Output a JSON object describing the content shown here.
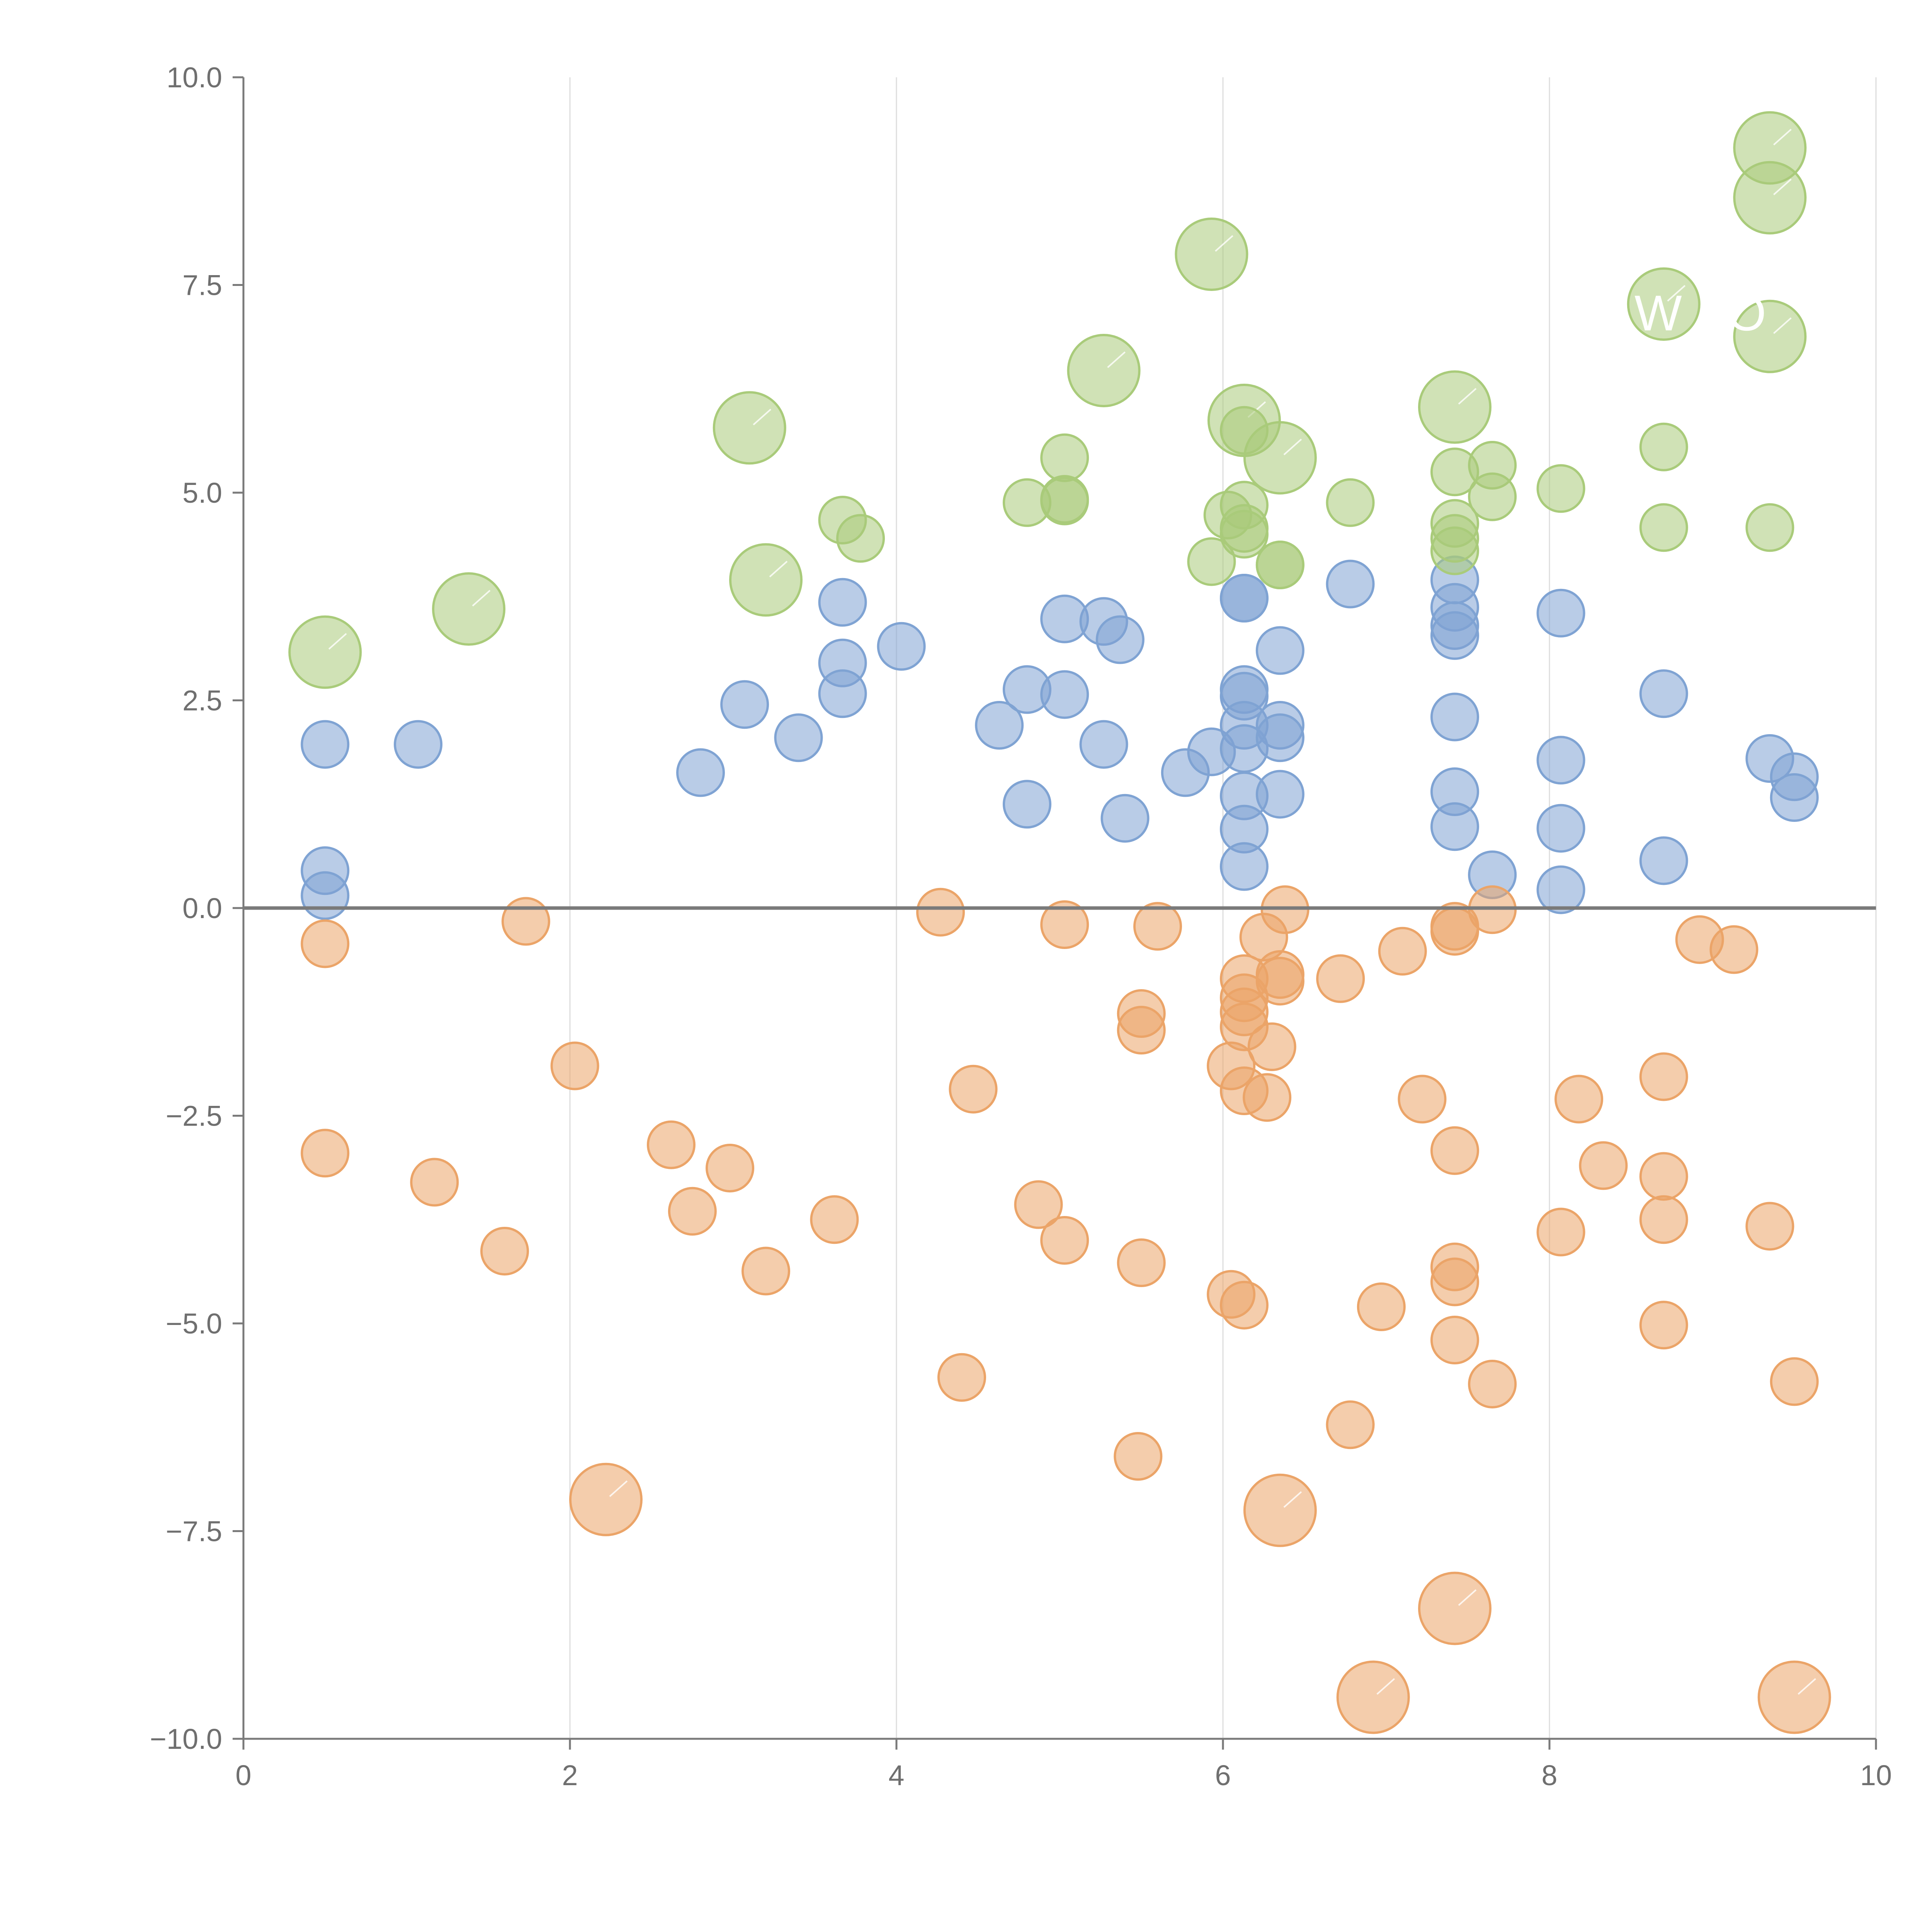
{
  "colors": {
    "blue": "#7fa3d3",
    "orange": "#eba468",
    "green": "#a9cb7a",
    "axis": "#7a7a7a",
    "grid": "#dddddd",
    "zero_line": "#7a7a7a",
    "label": "#ffffff"
  },
  "chart_data": {
    "type": "scatter",
    "title": "",
    "xlabel": "",
    "ylabel": "",
    "xlim": [
      0,
      10
    ],
    "ylim": [
      -10,
      10
    ],
    "x_ticks": [
      0,
      2,
      4,
      6,
      8,
      10
    ],
    "x_tick_labels": [
      "0",
      "2",
      "4",
      "6",
      "8",
      "10"
    ],
    "y_ticks": [
      10,
      7.5,
      5,
      2.5,
      0,
      -2.5,
      -5,
      -7.5,
      -10
    ],
    "y_tick_labels": [
      "10.0",
      "7.5",
      "5.0",
      "2.5",
      "0.0",
      "−2.5",
      "−5.0",
      "−7.5",
      "−10.0"
    ],
    "grid": "vertical",
    "reference_line_y": 0,
    "bubble_labels": [
      "W",
      "O"
    ],
    "series": [
      {
        "name": "blue",
        "color_key": "blue",
        "points": [
          {
            "x": 0.5,
            "y": 1.97,
            "s": 1
          },
          {
            "x": 0.5,
            "y": 0.45,
            "s": 1
          },
          {
            "x": 0.5,
            "y": 0.15,
            "s": 1
          },
          {
            "x": 1.07,
            "y": 1.97,
            "s": 1
          },
          {
            "x": 2.8,
            "y": 1.63,
            "s": 1
          },
          {
            "x": 3.07,
            "y": 2.45,
            "s": 1
          },
          {
            "x": 3.4,
            "y": 2.05,
            "s": 1
          },
          {
            "x": 3.67,
            "y": 3.68,
            "s": 1
          },
          {
            "x": 3.67,
            "y": 2.95,
            "s": 1
          },
          {
            "x": 3.67,
            "y": 2.58,
            "s": 1
          },
          {
            "x": 4.03,
            "y": 3.15,
            "s": 1
          },
          {
            "x": 4.63,
            "y": 2.2,
            "s": 1
          },
          {
            "x": 4.8,
            "y": 2.63,
            "s": 1
          },
          {
            "x": 4.8,
            "y": 1.25,
            "s": 1
          },
          {
            "x": 5.03,
            "y": 3.48,
            "s": 1
          },
          {
            "x": 5.03,
            "y": 2.57,
            "s": 1
          },
          {
            "x": 5.27,
            "y": 3.45,
            "s": 1
          },
          {
            "x": 5.37,
            "y": 3.23,
            "s": 1
          },
          {
            "x": 5.27,
            "y": 1.97,
            "s": 1
          },
          {
            "x": 5.4,
            "y": 1.08,
            "s": 1
          },
          {
            "x": 5.77,
            "y": 1.63,
            "s": 1
          },
          {
            "x": 5.93,
            "y": 1.88,
            "s": 1
          },
          {
            "x": 6.13,
            "y": 3.73,
            "s": 1
          },
          {
            "x": 6.13,
            "y": 3.73,
            "s": 1
          },
          {
            "x": 6.13,
            "y": 2.63,
            "s": 1
          },
          {
            "x": 6.13,
            "y": 2.55,
            "s": 1
          },
          {
            "x": 6.13,
            "y": 2.2,
            "s": 1
          },
          {
            "x": 6.13,
            "y": 1.92,
            "s": 1
          },
          {
            "x": 6.13,
            "y": 1.35,
            "s": 1
          },
          {
            "x": 6.13,
            "y": 0.95,
            "s": 1
          },
          {
            "x": 6.13,
            "y": 0.5,
            "s": 1
          },
          {
            "x": 6.35,
            "y": 3.1,
            "s": 1
          },
          {
            "x": 6.35,
            "y": 2.2,
            "s": 1
          },
          {
            "x": 6.35,
            "y": 2.05,
            "s": 1
          },
          {
            "x": 6.35,
            "y": 1.37,
            "s": 1
          },
          {
            "x": 6.78,
            "y": 3.9,
            "s": 1
          },
          {
            "x": 7.42,
            "y": 3.95,
            "s": 1
          },
          {
            "x": 7.42,
            "y": 3.62,
            "s": 1
          },
          {
            "x": 7.42,
            "y": 3.4,
            "s": 1
          },
          {
            "x": 7.42,
            "y": 3.28,
            "s": 1
          },
          {
            "x": 7.42,
            "y": 2.3,
            "s": 1
          },
          {
            "x": 7.42,
            "y": 1.4,
            "s": 1
          },
          {
            "x": 7.42,
            "y": 0.98,
            "s": 1
          },
          {
            "x": 7.65,
            "y": 0.4,
            "s": 1
          },
          {
            "x": 8.07,
            "y": 3.55,
            "s": 1
          },
          {
            "x": 8.07,
            "y": 1.78,
            "s": 1
          },
          {
            "x": 8.07,
            "y": 0.96,
            "s": 1
          },
          {
            "x": 8.07,
            "y": 0.22,
            "s": 1
          },
          {
            "x": 8.7,
            "y": 2.58,
            "s": 1
          },
          {
            "x": 8.7,
            "y": 0.57,
            "s": 1
          },
          {
            "x": 9.35,
            "y": 1.8,
            "s": 1
          },
          {
            "x": 9.5,
            "y": 1.58,
            "s": 1
          },
          {
            "x": 9.5,
            "y": 1.33,
            "s": 1
          }
        ]
      },
      {
        "name": "orange",
        "color_key": "orange",
        "points": [
          {
            "x": 0.5,
            "y": -0.43,
            "s": 1
          },
          {
            "x": 0.5,
            "y": -2.95,
            "s": 1
          },
          {
            "x": 1.17,
            "y": -3.3,
            "s": 1
          },
          {
            "x": 1.6,
            "y": -4.13,
            "s": 1
          },
          {
            "x": 1.73,
            "y": -0.16,
            "s": 1
          },
          {
            "x": 2.03,
            "y": -1.9,
            "s": 1
          },
          {
            "x": 2.22,
            "y": -7.12,
            "s": 2
          },
          {
            "x": 2.62,
            "y": -2.85,
            "s": 1
          },
          {
            "x": 2.75,
            "y": -3.65,
            "s": 1
          },
          {
            "x": 2.98,
            "y": -3.13,
            "s": 1
          },
          {
            "x": 3.2,
            "y": -4.37,
            "s": 1
          },
          {
            "x": 3.62,
            "y": -3.75,
            "s": 1
          },
          {
            "x": 4.27,
            "y": -0.05,
            "s": 1
          },
          {
            "x": 4.4,
            "y": -5.65,
            "s": 1
          },
          {
            "x": 4.47,
            "y": -2.18,
            "s": 1
          },
          {
            "x": 4.87,
            "y": -3.57,
            "s": 1
          },
          {
            "x": 5.03,
            "y": -0.2,
            "s": 1
          },
          {
            "x": 5.03,
            "y": -4.0,
            "s": 1
          },
          {
            "x": 5.5,
            "y": -1.27,
            "s": 1
          },
          {
            "x": 5.5,
            "y": -1.47,
            "s": 1
          },
          {
            "x": 5.5,
            "y": -4.27,
            "s": 1
          },
          {
            "x": 5.48,
            "y": -6.6,
            "s": 1
          },
          {
            "x": 5.6,
            "y": -0.22,
            "s": 1
          },
          {
            "x": 6.05,
            "y": -1.9,
            "s": 1
          },
          {
            "x": 6.05,
            "y": -4.65,
            "s": 1
          },
          {
            "x": 6.13,
            "y": -0.85,
            "s": 1
          },
          {
            "x": 6.13,
            "y": -1.08,
            "s": 1
          },
          {
            "x": 6.13,
            "y": -1.25,
            "s": 1
          },
          {
            "x": 6.13,
            "y": -1.43,
            "s": 1
          },
          {
            "x": 6.13,
            "y": -2.2,
            "s": 1
          },
          {
            "x": 6.13,
            "y": -4.78,
            "s": 1
          },
          {
            "x": 6.25,
            "y": -0.35,
            "s": 1
          },
          {
            "x": 6.27,
            "y": -2.28,
            "s": 1
          },
          {
            "x": 6.3,
            "y": -1.67,
            "s": 1
          },
          {
            "x": 6.35,
            "y": -0.8,
            "s": 1
          },
          {
            "x": 6.35,
            "y": -0.88,
            "s": 1
          },
          {
            "x": 6.38,
            "y": -0.02,
            "s": 1
          },
          {
            "x": 6.35,
            "y": -7.25,
            "s": 2
          },
          {
            "x": 6.72,
            "y": -0.85,
            "s": 1
          },
          {
            "x": 6.78,
            "y": -6.22,
            "s": 1
          },
          {
            "x": 6.92,
            "y": -9.5,
            "s": 2
          },
          {
            "x": 6.97,
            "y": -4.8,
            "s": 1
          },
          {
            "x": 7.1,
            "y": -0.52,
            "s": 1
          },
          {
            "x": 7.22,
            "y": -2.3,
            "s": 1
          },
          {
            "x": 7.42,
            "y": -0.22,
            "s": 1
          },
          {
            "x": 7.42,
            "y": -0.28,
            "s": 1
          },
          {
            "x": 7.42,
            "y": -2.92,
            "s": 1
          },
          {
            "x": 7.42,
            "y": -4.32,
            "s": 1
          },
          {
            "x": 7.42,
            "y": -4.5,
            "s": 1
          },
          {
            "x": 7.42,
            "y": -5.2,
            "s": 1
          },
          {
            "x": 7.42,
            "y": -8.43,
            "s": 2
          },
          {
            "x": 7.65,
            "y": -0.02,
            "s": 1
          },
          {
            "x": 7.65,
            "y": -5.73,
            "s": 1
          },
          {
            "x": 8.07,
            "y": -3.9,
            "s": 1
          },
          {
            "x": 8.18,
            "y": -2.3,
            "s": 1
          },
          {
            "x": 8.33,
            "y": -3.1,
            "s": 1
          },
          {
            "x": 8.7,
            "y": -2.03,
            "s": 1
          },
          {
            "x": 8.7,
            "y": -3.23,
            "s": 1
          },
          {
            "x": 8.7,
            "y": -3.75,
            "s": 1
          },
          {
            "x": 8.7,
            "y": -5.02,
            "s": 1
          },
          {
            "x": 8.92,
            "y": -0.38,
            "s": 1
          },
          {
            "x": 9.13,
            "y": -0.5,
            "s": 1
          },
          {
            "x": 9.35,
            "y": -3.83,
            "s": 1
          },
          {
            "x": 9.5,
            "y": -5.7,
            "s": 1
          },
          {
            "x": 9.5,
            "y": -9.5,
            "s": 2
          }
        ]
      },
      {
        "name": "green",
        "color_key": "green",
        "points": [
          {
            "x": 0.5,
            "y": 3.08,
            "s": 2
          },
          {
            "x": 1.38,
            "y": 3.6,
            "s": 2
          },
          {
            "x": 3.1,
            "y": 5.78,
            "s": 2
          },
          {
            "x": 3.2,
            "y": 3.95,
            "s": 2
          },
          {
            "x": 3.67,
            "y": 4.67,
            "s": 1
          },
          {
            "x": 3.78,
            "y": 4.45,
            "s": 1
          },
          {
            "x": 4.8,
            "y": 4.88,
            "s": 1
          },
          {
            "x": 5.03,
            "y": 5.42,
            "s": 1
          },
          {
            "x": 5.03,
            "y": 4.92,
            "s": 1
          },
          {
            "x": 5.03,
            "y": 4.9,
            "s": 1
          },
          {
            "x": 5.27,
            "y": 6.47,
            "s": 2
          },
          {
            "x": 5.93,
            "y": 7.87,
            "s": 2
          },
          {
            "x": 5.93,
            "y": 4.17,
            "s": 1
          },
          {
            "x": 6.03,
            "y": 4.73,
            "s": 1
          },
          {
            "x": 6.13,
            "y": 5.87,
            "s": 2
          },
          {
            "x": 6.13,
            "y": 5.75,
            "s": 1
          },
          {
            "x": 6.13,
            "y": 4.85,
            "s": 1
          },
          {
            "x": 6.13,
            "y": 4.57,
            "s": 1
          },
          {
            "x": 6.13,
            "y": 4.5,
            "s": 1
          },
          {
            "x": 6.35,
            "y": 5.42,
            "s": 2
          },
          {
            "x": 6.35,
            "y": 4.13,
            "s": 1
          },
          {
            "x": 6.35,
            "y": 4.13,
            "s": 1
          },
          {
            "x": 6.78,
            "y": 4.88,
            "s": 1
          },
          {
            "x": 7.42,
            "y": 6.03,
            "s": 2
          },
          {
            "x": 7.42,
            "y": 5.25,
            "s": 1
          },
          {
            "x": 7.42,
            "y": 4.63,
            "s": 1
          },
          {
            "x": 7.42,
            "y": 4.45,
            "s": 1
          },
          {
            "x": 7.42,
            "y": 4.3,
            "s": 1
          },
          {
            "x": 7.65,
            "y": 5.33,
            "s": 1
          },
          {
            "x": 7.65,
            "y": 4.95,
            "s": 1
          },
          {
            "x": 8.07,
            "y": 5.05,
            "s": 1
          },
          {
            "x": 8.7,
            "y": 7.27,
            "s": 2
          },
          {
            "x": 8.7,
            "y": 5.55,
            "s": 1
          },
          {
            "x": 8.7,
            "y": 4.58,
            "s": 1
          },
          {
            "x": 9.35,
            "y": 9.15,
            "s": 2
          },
          {
            "x": 9.35,
            "y": 8.55,
            "s": 2
          },
          {
            "x": 9.35,
            "y": 6.88,
            "s": 2
          },
          {
            "x": 9.35,
            "y": 4.58,
            "s": 1
          }
        ]
      }
    ]
  }
}
